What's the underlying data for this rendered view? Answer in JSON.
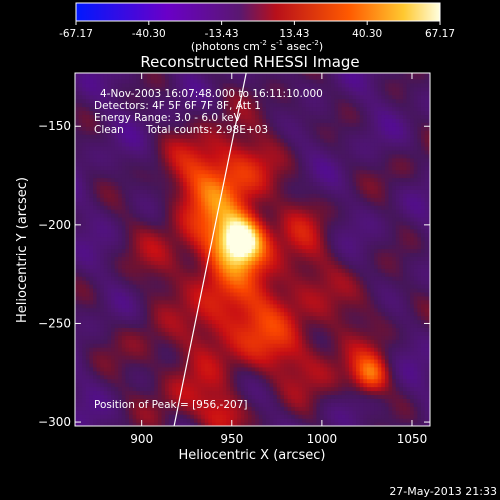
{
  "chart_data": {
    "type": "heatmap",
    "title": "Reconstructed RHESSI Image",
    "xlabel": "Heliocentric X (arcsec)",
    "ylabel": "Heliocentric Y (arcsec)",
    "xlim": [
      863,
      1060
    ],
    "ylim": [
      -302,
      -123
    ],
    "xticks": [
      900,
      950,
      1000,
      1050
    ],
    "yticks": [
      -150,
      -200,
      -250,
      -300
    ],
    "colorbar": {
      "ticks": [
        -67.17,
        -40.3,
        -13.43,
        13.43,
        40.3,
        67.17
      ],
      "tick_labels": [
        "-67.17",
        "-40.30",
        "-13.43",
        "13.43",
        "40.30",
        "67.17"
      ],
      "range": [
        -67.17,
        67.17
      ],
      "unit_text": "(photons cm",
      "unit_sup1": "-2",
      "unit_mid": " s",
      "unit_sup2": "-1",
      "unit_mid2": " asec",
      "unit_sup3": "-2",
      "unit_end": ")"
    },
    "annotations": {
      "time": "4-Nov-2003 16:07:48.000 to 16:11:10.000",
      "detectors": "Detectors: 4F 5F 6F 7F 8F, Att 1",
      "energy": "Energy Range: 3.0 - 6.0 keV",
      "method": "Clean",
      "counts": "Total counts: 2.98E+03",
      "peak": "Position of Peak = [956,-207]"
    },
    "peak": {
      "x": 956,
      "y": -207
    },
    "limb_line": [
      [
        918,
        -302
      ],
      [
        958,
        -123
      ]
    ],
    "sources": [
      {
        "x": 956,
        "y": -207,
        "sx": 9,
        "sy": 9,
        "amp": 70
      },
      {
        "x": 945,
        "y": -195,
        "sx": 14,
        "sy": 30,
        "amp": 34
      },
      {
        "x": 930,
        "y": -175,
        "sx": 16,
        "sy": 14,
        "amp": 22
      },
      {
        "x": 915,
        "y": -215,
        "sx": 18,
        "sy": 16,
        "amp": 16
      },
      {
        "x": 978,
        "y": -230,
        "sx": 22,
        "sy": 18,
        "amp": 22
      },
      {
        "x": 990,
        "y": -198,
        "sx": 12,
        "sy": 14,
        "amp": 14
      },
      {
        "x": 965,
        "y": -258,
        "sx": 16,
        "sy": 16,
        "amp": 22
      },
      {
        "x": 940,
        "y": -250,
        "sx": 12,
        "sy": 14,
        "amp": 18
      },
      {
        "x": 920,
        "y": -285,
        "sx": 14,
        "sy": 14,
        "amp": 20
      },
      {
        "x": 1000,
        "y": -270,
        "sx": 18,
        "sy": 14,
        "amp": 20
      },
      {
        "x": 1027,
        "y": -276,
        "sx": 7,
        "sy": 7,
        "amp": 40
      },
      {
        "x": 1030,
        "y": -240,
        "sx": 12,
        "sy": 14,
        "amp": 12
      },
      {
        "x": 980,
        "y": -140,
        "sx": 10,
        "sy": 10,
        "amp": 12
      },
      {
        "x": 1045,
        "y": -172,
        "sx": 10,
        "sy": 10,
        "amp": 10
      },
      {
        "x": 900,
        "y": -260,
        "sx": 12,
        "sy": 12,
        "amp": 14
      },
      {
        "x": 945,
        "y": -296,
        "sx": 10,
        "sy": 8,
        "amp": 26
      },
      {
        "x": 960,
        "y": -170,
        "sx": 12,
        "sy": 12,
        "amp": 16
      }
    ],
    "footer": "27-May-2013 21:33"
  }
}
